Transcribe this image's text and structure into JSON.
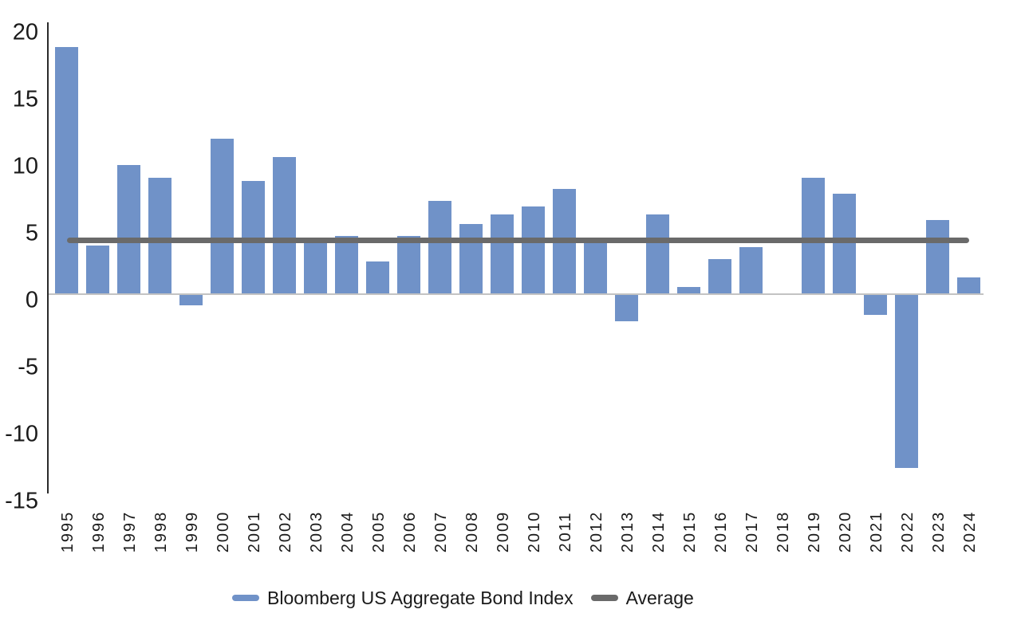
{
  "chart_data": {
    "type": "bar",
    "title": "",
    "categories": [
      "1995",
      "1996",
      "1997",
      "1998",
      "1999",
      "2000",
      "2001",
      "2002",
      "2003",
      "2004",
      "2005",
      "2006",
      "2007",
      "2008",
      "2009",
      "2010",
      "2011",
      "2012",
      "2013",
      "2014",
      "2015",
      "2016",
      "2017",
      "2018",
      "2019",
      "2020",
      "2021",
      "2022",
      "2023",
      "2024"
    ],
    "series": [
      {
        "name": "Bloomberg US Aggregate Bond Index",
        "type": "bar",
        "color": "#7092c8",
        "values": [
          18.47,
          3.63,
          9.65,
          8.69,
          -0.82,
          11.63,
          8.44,
          10.26,
          3.9,
          4.34,
          2.43,
          4.33,
          6.97,
          5.24,
          5.93,
          6.54,
          7.84,
          4.21,
          -2.02,
          5.97,
          0.55,
          2.65,
          3.54,
          0.01,
          8.72,
          7.51,
          -1.54,
          -13.01,
          5.53,
          1.25
        ]
      },
      {
        "name": "Average",
        "type": "line",
        "color": "#6a6a6a",
        "value": 4.0
      }
    ],
    "ylim": [
      -15,
      20
    ],
    "yticks": [
      "20",
      "15",
      "10",
      "5",
      "0",
      "-5",
      "-10",
      "-15"
    ],
    "grid": "zero-line-only",
    "legend_position": "bottom"
  },
  "legend": {
    "bond_index_label": "Bloomberg US Aggregate Bond Index",
    "average_label": "Average"
  },
  "colors": {
    "bar": "#7092c8",
    "average_line": "#6a6a6a",
    "y_axis_line": "#2b2b2b",
    "zero_gridline": "#c3c3c3",
    "text": "#1a1a1a"
  }
}
